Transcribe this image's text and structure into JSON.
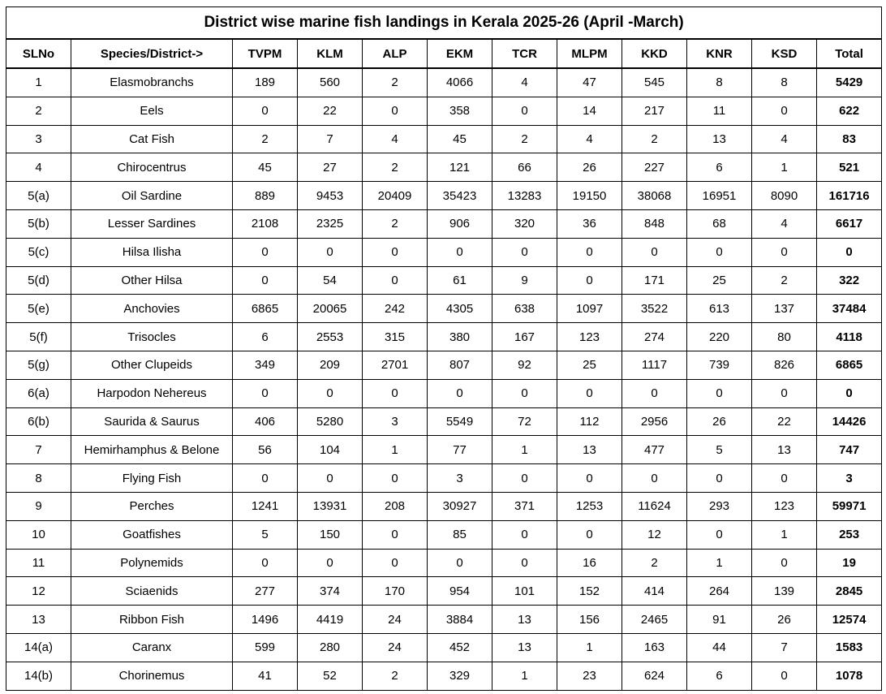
{
  "title": "District wise marine fish landings in Kerala 2025-26 (April -March)",
  "columns": [
    "SLNo",
    "Species/District->",
    "TVPM",
    "KLM",
    "ALP",
    "EKM",
    "TCR",
    "MLPM",
    "KKD",
    "KNR",
    "KSD",
    "Total"
  ],
  "rows": [
    {
      "sl": "1",
      "species": "Elasmobranchs",
      "values": [
        "189",
        "560",
        "2",
        "4066",
        "4",
        "47",
        "545",
        "8",
        "8"
      ],
      "total": "5429"
    },
    {
      "sl": "2",
      "species": "Eels",
      "values": [
        "0",
        "22",
        "0",
        "358",
        "0",
        "14",
        "217",
        "11",
        "0"
      ],
      "total": "622"
    },
    {
      "sl": "3",
      "species": "Cat Fish",
      "values": [
        "2",
        "7",
        "4",
        "45",
        "2",
        "4",
        "2",
        "13",
        "4"
      ],
      "total": "83"
    },
    {
      "sl": "4",
      "species": "Chirocentrus",
      "values": [
        "45",
        "27",
        "2",
        "121",
        "66",
        "26",
        "227",
        "6",
        "1"
      ],
      "total": "521"
    },
    {
      "sl": "5(a)",
      "species": "Oil Sardine",
      "values": [
        "889",
        "9453",
        "20409",
        "35423",
        "13283",
        "19150",
        "38068",
        "16951",
        "8090"
      ],
      "total": "161716"
    },
    {
      "sl": "5(b)",
      "species": "Lesser Sardines",
      "values": [
        "2108",
        "2325",
        "2",
        "906",
        "320",
        "36",
        "848",
        "68",
        "4"
      ],
      "total": "6617"
    },
    {
      "sl": "5(c)",
      "species": "Hilsa Ilisha",
      "values": [
        "0",
        "0",
        "0",
        "0",
        "0",
        "0",
        "0",
        "0",
        "0"
      ],
      "total": "0"
    },
    {
      "sl": "5(d)",
      "species": "Other Hilsa",
      "values": [
        "0",
        "54",
        "0",
        "61",
        "9",
        "0",
        "171",
        "25",
        "2"
      ],
      "total": "322"
    },
    {
      "sl": "5(e)",
      "species": "Anchovies",
      "values": [
        "6865",
        "20065",
        "242",
        "4305",
        "638",
        "1097",
        "3522",
        "613",
        "137"
      ],
      "total": "37484"
    },
    {
      "sl": "5(f)",
      "species": "Trisocles",
      "values": [
        "6",
        "2553",
        "315",
        "380",
        "167",
        "123",
        "274",
        "220",
        "80"
      ],
      "total": "4118"
    },
    {
      "sl": "5(g)",
      "species": "Other Clupeids",
      "values": [
        "349",
        "209",
        "2701",
        "807",
        "92",
        "25",
        "1117",
        "739",
        "826"
      ],
      "total": "6865"
    },
    {
      "sl": "6(a)",
      "species": "Harpodon Nehereus",
      "values": [
        "0",
        "0",
        "0",
        "0",
        "0",
        "0",
        "0",
        "0",
        "0"
      ],
      "total": "0"
    },
    {
      "sl": "6(b)",
      "species": "Saurida & Saurus",
      "values": [
        "406",
        "5280",
        "3",
        "5549",
        "72",
        "112",
        "2956",
        "26",
        "22"
      ],
      "total": "14426"
    },
    {
      "sl": "7",
      "species": "Hemirhamphus & Belone",
      "values": [
        "56",
        "104",
        "1",
        "77",
        "1",
        "13",
        "477",
        "5",
        "13"
      ],
      "total": "747"
    },
    {
      "sl": "8",
      "species": "Flying Fish",
      "values": [
        "0",
        "0",
        "0",
        "3",
        "0",
        "0",
        "0",
        "0",
        "0"
      ],
      "total": "3"
    },
    {
      "sl": "9",
      "species": "Perches",
      "values": [
        "1241",
        "13931",
        "208",
        "30927",
        "371",
        "1253",
        "11624",
        "293",
        "123"
      ],
      "total": "59971"
    },
    {
      "sl": "10",
      "species": "Goatfishes",
      "values": [
        "5",
        "150",
        "0",
        "85",
        "0",
        "0",
        "12",
        "0",
        "1"
      ],
      "total": "253"
    },
    {
      "sl": "11",
      "species": "Polynemids",
      "values": [
        "0",
        "0",
        "0",
        "0",
        "0",
        "16",
        "2",
        "1",
        "0"
      ],
      "total": "19"
    },
    {
      "sl": "12",
      "species": "Sciaenids",
      "values": [
        "277",
        "374",
        "170",
        "954",
        "101",
        "152",
        "414",
        "264",
        "139"
      ],
      "total": "2845"
    },
    {
      "sl": "13",
      "species": "Ribbon Fish",
      "values": [
        "1496",
        "4419",
        "24",
        "3884",
        "13",
        "156",
        "2465",
        "91",
        "26"
      ],
      "total": "12574"
    },
    {
      "sl": "14(a)",
      "species": "Caranx",
      "values": [
        "599",
        "280",
        "24",
        "452",
        "13",
        "1",
        "163",
        "44",
        "7"
      ],
      "total": "1583"
    },
    {
      "sl": "14(b)",
      "species": "Chorinemus",
      "values": [
        "41",
        "52",
        "2",
        "329",
        "1",
        "23",
        "624",
        "6",
        "0"
      ],
      "total": "1078"
    }
  ]
}
